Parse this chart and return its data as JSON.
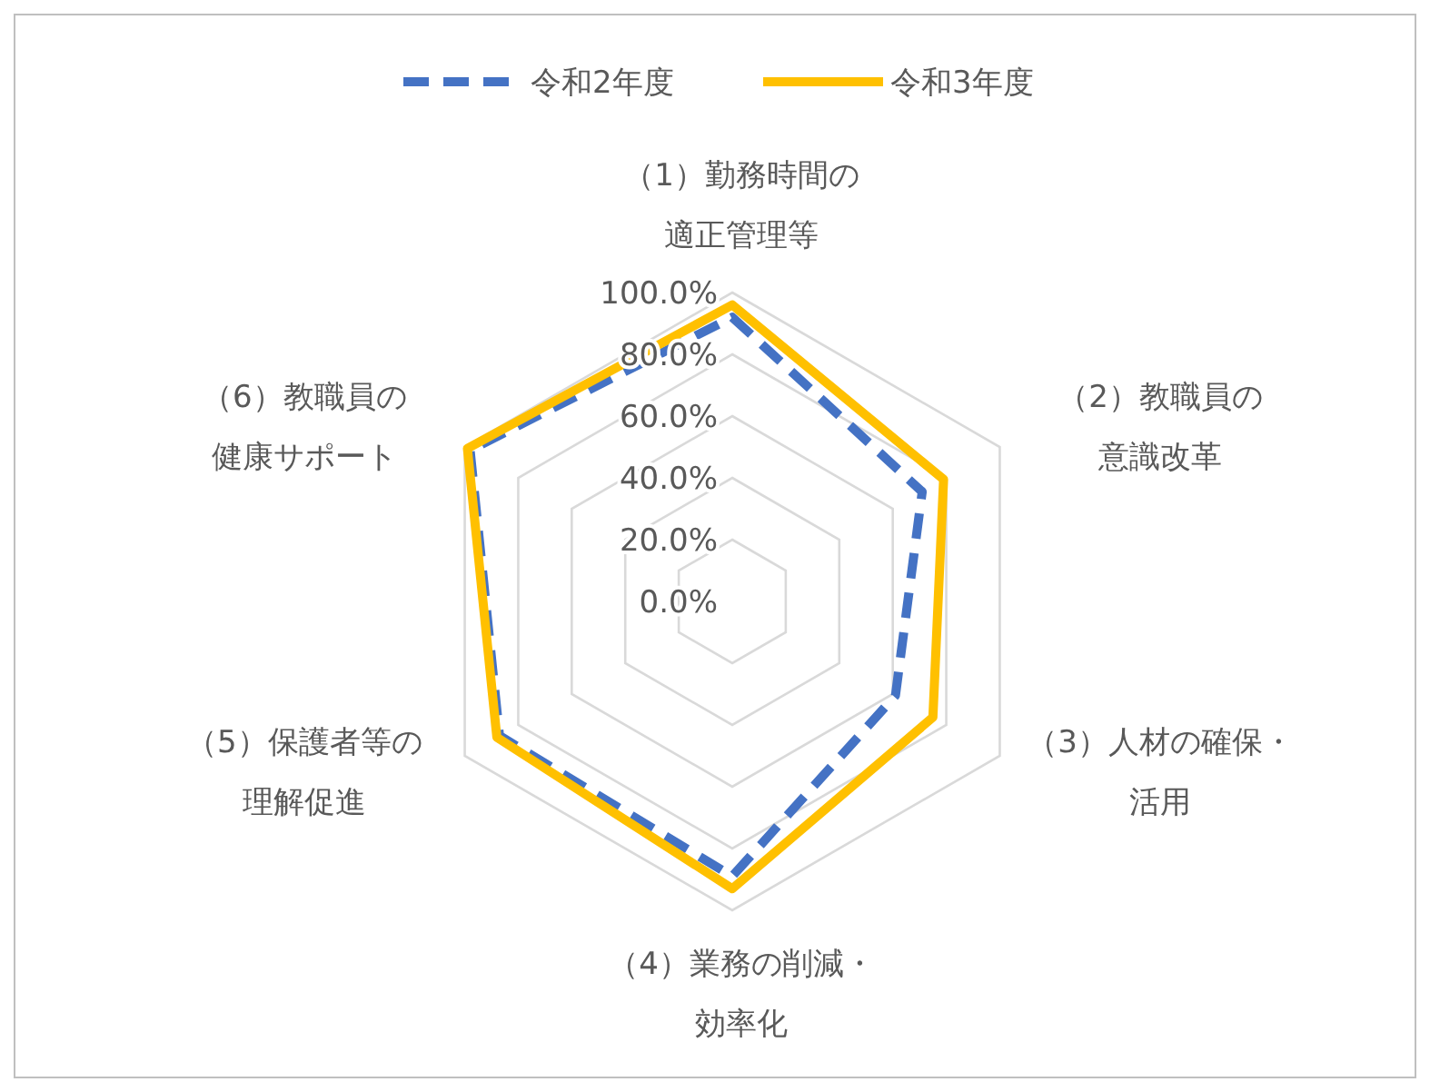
{
  "chart_data": {
    "type": "radar",
    "categories": [
      "（1）勤務時間の適正管理等",
      "（2）教職員の意識改革",
      "（3）人材の確保・活用",
      "（4）業務の削減・効率化",
      "（5）保護者等の理解促進",
      "（6）教職員の健康サポート"
    ],
    "series": [
      {
        "name": "令和2年度",
        "color": "#4472c4",
        "line_style": "dashed",
        "values": [
          92,
          71,
          61,
          89,
          87,
          98
        ]
      },
      {
        "name": "令和3年度",
        "color": "#ffc000",
        "line_style": "solid",
        "values": [
          96,
          79,
          75,
          93,
          88,
          99
        ]
      }
    ],
    "ylim": [
      0,
      100
    ],
    "yticks": [
      {
        "value": 0,
        "label": "0.0%"
      },
      {
        "value": 20,
        "label": "20.0%"
      },
      {
        "value": 40,
        "label": "40.0%"
      },
      {
        "value": 60,
        "label": "60.0%"
      },
      {
        "value": 80,
        "label": "80.0%"
      },
      {
        "value": 100,
        "label": "100.0%"
      }
    ],
    "grid": true,
    "legend": "top",
    "marker": "none"
  }
}
